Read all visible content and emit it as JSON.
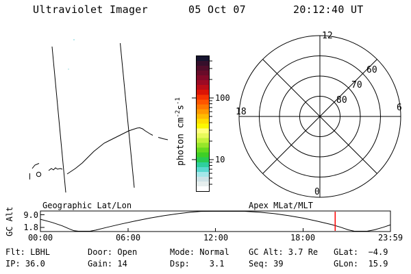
{
  "header": {
    "app_title": "Ultraviolet Imager",
    "date": "05 Oct 07",
    "time": "20:12:40 UT"
  },
  "map_panel": {
    "caption": "Geographic Lat/Lon"
  },
  "colorbar": {
    "unit_parts": [
      "photon cm",
      "-2",
      "s",
      "-1"
    ],
    "major_ticks": [
      {
        "value": 100,
        "label": "100"
      },
      {
        "value": 10,
        "label": "10"
      }
    ],
    "minor_tick_values": [
      4,
      5,
      6,
      7,
      8,
      9,
      20,
      30,
      40,
      50,
      60,
      70,
      80,
      90,
      200,
      300,
      400
    ],
    "colors": [
      "#16142f",
      "#360f2b",
      "#500d2a",
      "#690b29",
      "#830928",
      "#9c0a24",
      "#bb0d17",
      "#dc1405",
      "#f63300",
      "#ff5500",
      "#ff7700",
      "#ff9900",
      "#ffbb00",
      "#ffdd00",
      "#fcf800",
      "#ffff7e",
      "#e8fa5a",
      "#c3f13b",
      "#97e62a",
      "#66da1f",
      "#3ecf26",
      "#28cb52",
      "#2fcf9e",
      "#59d8cf",
      "#a5e7e9",
      "#cfe3e7",
      "#e6eeee",
      "#ffffff"
    ]
  },
  "polar": {
    "caption": "Apex MLat/MLT",
    "mlt_top": "12",
    "mlt_left": "18",
    "mlt_right": "6",
    "mlt_bottom": "0",
    "ring_labels": [
      "80",
      "70",
      "60"
    ],
    "ring_latitudes": [
      80,
      70,
      60,
      50
    ]
  },
  "timeline": {
    "ylabel": "GC Alt",
    "ytick_labels": [
      "9.0",
      "1.8"
    ],
    "xtick_labels": [
      "00:00",
      "06:00",
      "12:00",
      "18:00",
      "23:59"
    ],
    "marker_color": "#ff0000"
  },
  "chart_data": {
    "type": "line",
    "title": "GC Alt",
    "x_unit": "UT hours",
    "y_unit": "Re",
    "x_axis_range": [
      0,
      24
    ],
    "y_axis_range": [
      1.8,
      9.0
    ],
    "y_ticks": [
      9.0,
      1.8
    ],
    "x_tick_labels": [
      "00:00",
      "06:00",
      "12:00",
      "18:00",
      "23:59"
    ],
    "x": [
      0,
      0.8,
      1.5,
      2,
      2.3,
      2.6,
      3,
      3.4,
      3.8,
      4.5,
      5.5,
      6.5,
      7.5,
      8.5,
      9.5,
      10.3,
      11,
      11.8,
      13,
      14,
      15,
      16,
      17,
      18,
      19,
      20,
      20.6,
      21.1,
      21.5,
      21.9,
      22.4,
      22.9,
      23.5,
      23.98
    ],
    "y": [
      6.1,
      5,
      3.8,
      2.7,
      2.1,
      1.85,
      1.8,
      1.85,
      2.3,
      3.2,
      4.4,
      5.5,
      6.5,
      7.4,
      8.1,
      8.6,
      8.85,
      9,
      9.05,
      8.95,
      8.6,
      8.1,
      7.4,
      6.5,
      5.4,
      4.2,
      3.3,
      2.4,
      1.95,
      1.8,
      1.85,
      2.4,
      3.3,
      4.1
    ],
    "marker_time_hours": 20.21
  },
  "status": {
    "rows": [
      [
        "Flt: LBHL",
        "Door: Open",
        "Mode: Normal",
        "GC Alt: 3.7 Re",
        "GLat:  −4.9"
      ],
      [
        "IP: 36.0",
        "Gain: 14",
        "Dsp:    3.1",
        "Seq: 39",
        "GLon:  15.9"
      ]
    ]
  }
}
